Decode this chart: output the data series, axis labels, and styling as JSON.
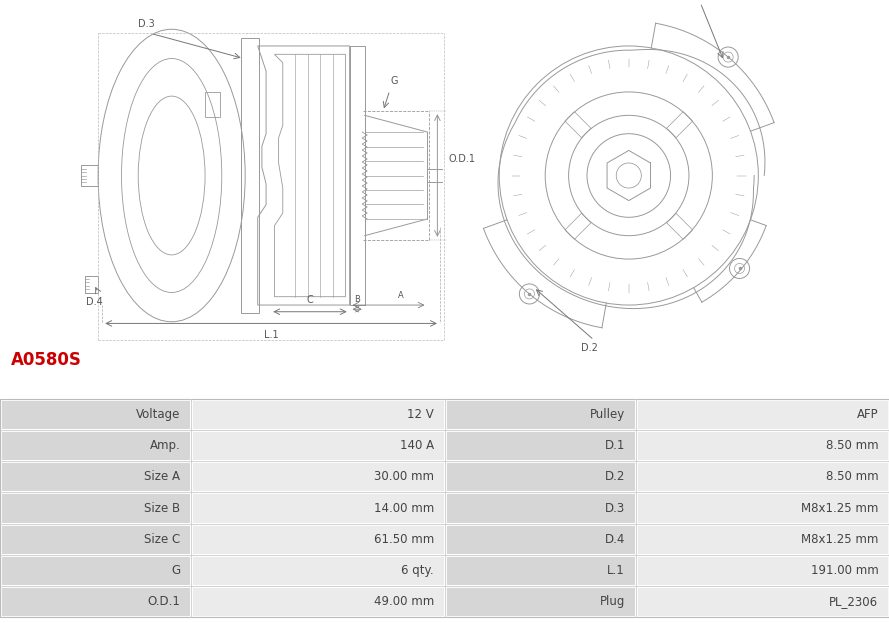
{
  "title": "A0580S",
  "title_color": "#cc0000",
  "background_color": "#ffffff",
  "table_label_bg": "#d6d6d6",
  "table_value_bg": "#ebebeb",
  "table_border_color": "#ffffff",
  "rows": [
    [
      "Voltage",
      "12 V",
      "Pulley",
      "AFP"
    ],
    [
      "Amp.",
      "140 A",
      "D.1",
      "8.50 mm"
    ],
    [
      "Size A",
      "30.00 mm",
      "D.2",
      "8.50 mm"
    ],
    [
      "Size B",
      "14.00 mm",
      "D.3",
      "M8x1.25 mm"
    ],
    [
      "Size C",
      "61.50 mm",
      "D.4",
      "M8x1.25 mm"
    ],
    [
      "G",
      "6 qty.",
      "L.1",
      "191.00 mm"
    ],
    [
      "O.D.1",
      "49.00 mm",
      "Plug",
      "PL_2306"
    ]
  ],
  "text_color": "#444444",
  "font_size": 8.5,
  "title_font_size": 12,
  "lc": "#999999",
  "lw": 0.7
}
